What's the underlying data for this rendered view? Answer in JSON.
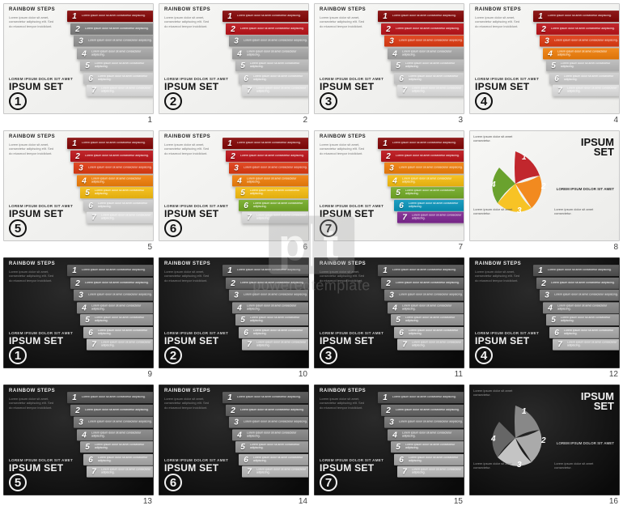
{
  "header_label": "RAINBOW STEPS",
  "body_filler": "Lorem ipsum dolor sit amet, consectetur adipiscing elit. Sed do eiusmod tempor incididunt.",
  "footer_label": "LOREM IPSUM DOLOR SIT AMET",
  "title_label": "IPSUM SET",
  "watermark_text": "poweredtemplate",
  "palette": {
    "rainbow": [
      "#8e1b1b",
      "#c1272d",
      "#e24b26",
      "#f28a1f",
      "#f7c325",
      "#7fb239",
      "#2e9e8f",
      "#1f6fa8",
      "#8a3a9b"
    ],
    "grey_light": [
      "#777777",
      "#8a8a8a",
      "#9c9c9c",
      "#aeaeae",
      "#c0c0c0",
      "#d2d2d2",
      "#e4e4e4"
    ],
    "grey_dark": [
      "#606060",
      "#707070",
      "#808080",
      "#909090",
      "#a0a0a0",
      "#b0b0b0",
      "#c0c0c0"
    ],
    "diamond_color": [
      "#c1272d",
      "#f28a1f",
      "#f7c325",
      "#6aa22e"
    ],
    "diamond_grey": [
      "#888888",
      "#aaaaaa",
      "#c4c4c4",
      "#666666"
    ]
  },
  "step_count": 7,
  "slides": [
    {
      "n": 1,
      "theme": "light",
      "type": "steps",
      "big": 1,
      "hl": 1
    },
    {
      "n": 2,
      "theme": "light",
      "type": "steps",
      "big": 2,
      "hl": 2
    },
    {
      "n": 3,
      "theme": "light",
      "type": "steps",
      "big": 3,
      "hl": 3
    },
    {
      "n": 4,
      "theme": "light",
      "type": "steps",
      "big": 4,
      "hl": 4
    },
    {
      "n": 5,
      "theme": "light",
      "type": "steps",
      "big": 5,
      "hl": 5
    },
    {
      "n": 6,
      "theme": "light",
      "type": "steps",
      "big": 6,
      "hl": 6
    },
    {
      "n": 7,
      "theme": "light",
      "type": "steps",
      "big": 7,
      "hl": 7
    },
    {
      "n": 8,
      "theme": "light",
      "type": "diamond",
      "palette": "diamond_color"
    },
    {
      "n": 9,
      "theme": "dark",
      "type": "steps",
      "big": 1,
      "gp": "grey_dark"
    },
    {
      "n": 10,
      "theme": "dark",
      "type": "steps",
      "big": 2,
      "gp": "grey_dark"
    },
    {
      "n": 11,
      "theme": "dark",
      "type": "steps",
      "big": 3,
      "gp": "grey_dark"
    },
    {
      "n": 12,
      "theme": "dark",
      "type": "steps",
      "big": 4,
      "gp": "grey_dark"
    },
    {
      "n": 13,
      "theme": "dark",
      "type": "steps",
      "big": 5,
      "gp": "grey_dark"
    },
    {
      "n": 14,
      "theme": "dark",
      "type": "steps",
      "big": 6,
      "gp": "grey_dark"
    },
    {
      "n": 15,
      "theme": "dark",
      "type": "steps",
      "big": 7,
      "gp": "grey_dark"
    },
    {
      "n": 16,
      "theme": "dark",
      "type": "diamond",
      "palette": "diamond_grey"
    }
  ]
}
